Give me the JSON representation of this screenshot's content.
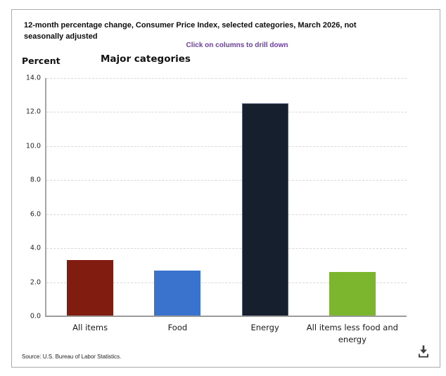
{
  "header": {
    "title": "12-month percentage change, Consumer Price Index, selected categories, March 2026, not seasonally adjusted",
    "drill_down_note": "Click on columns to drill down",
    "drill_down_note_color": "#6b3fa0"
  },
  "chart_data": {
    "type": "bar",
    "title": "Major categories",
    "ylabel": "Percent",
    "categories": [
      "All items",
      "Food",
      "Energy",
      "All items less food and energy"
    ],
    "values": [
      3.3,
      2.7,
      12.5,
      2.6
    ],
    "bar_colors": [
      "#811c10",
      "#3a73ce",
      "#151f2e",
      "#7cb52e"
    ],
    "ylim": [
      0,
      14
    ],
    "ytick_step": 2,
    "ytick_format_decimals": 1,
    "grid": "horizontal-dashed",
    "legend": "none"
  },
  "footer": {
    "source": "Source: U.S. Bureau of Labor Statistics.",
    "download_icon": "download-icon"
  }
}
